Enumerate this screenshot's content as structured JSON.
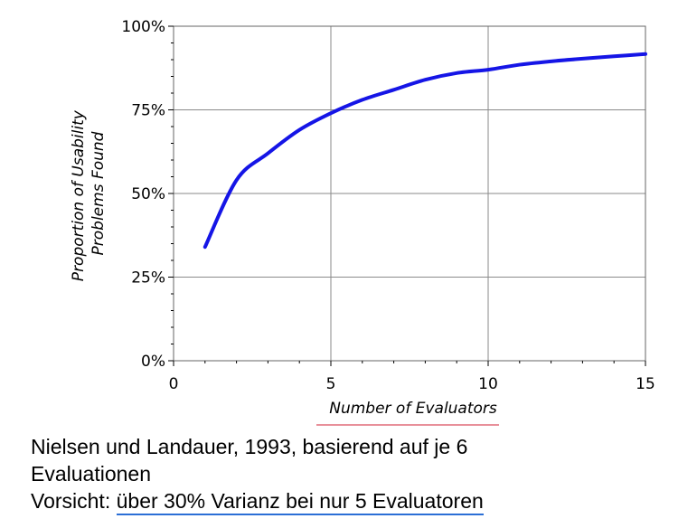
{
  "chart_data": {
    "type": "line",
    "xlabel": "Number of Evaluators",
    "ylabel_lines": [
      "Proportion of Usability",
      "Problems Found"
    ],
    "xlim": [
      0,
      15
    ],
    "ylim": [
      0,
      100
    ],
    "x_ticks": [
      0,
      5,
      10,
      15
    ],
    "y_ticks": [
      0,
      25,
      50,
      75,
      100
    ],
    "y_tick_labels": [
      "0%",
      "25%",
      "50%",
      "75%",
      "100%"
    ],
    "grid": true,
    "accent_color": "#1515e6",
    "series": [
      {
        "x": [
          1,
          2,
          3,
          4,
          5,
          6,
          7,
          8,
          9,
          10,
          11,
          12,
          13,
          14,
          15
        ],
        "values": [
          34,
          54,
          62,
          69,
          74,
          78,
          81,
          84,
          86,
          87,
          88.5,
          89.5,
          90.3,
          91,
          91.7
        ]
      }
    ]
  },
  "captions": {
    "line1": "Nielsen und Landauer, 1993, basierend auf je 6",
    "line2": "Evaluationen",
    "line3_prefix": "Vorsicht: ",
    "line3_emphasis": "über 30% Varianz bei nur 5 Evaluatoren"
  }
}
